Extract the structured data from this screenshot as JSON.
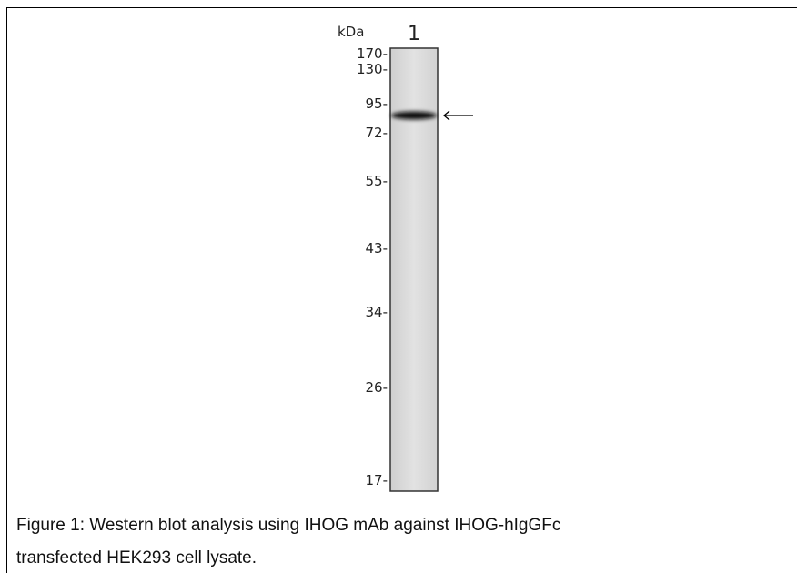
{
  "blot": {
    "unit_label": "kDa",
    "lane_label": "1",
    "markers": [
      "170-",
      "130-",
      "95-",
      "72-",
      "55-",
      "43-",
      "34-",
      "26-",
      "17-"
    ]
  },
  "caption": {
    "lines": [
      "Figure 1: Western blot analysis using IHOG mAb against IHOG-hIgGFc",
      "transfected HEK293 cell lysate."
    ]
  }
}
